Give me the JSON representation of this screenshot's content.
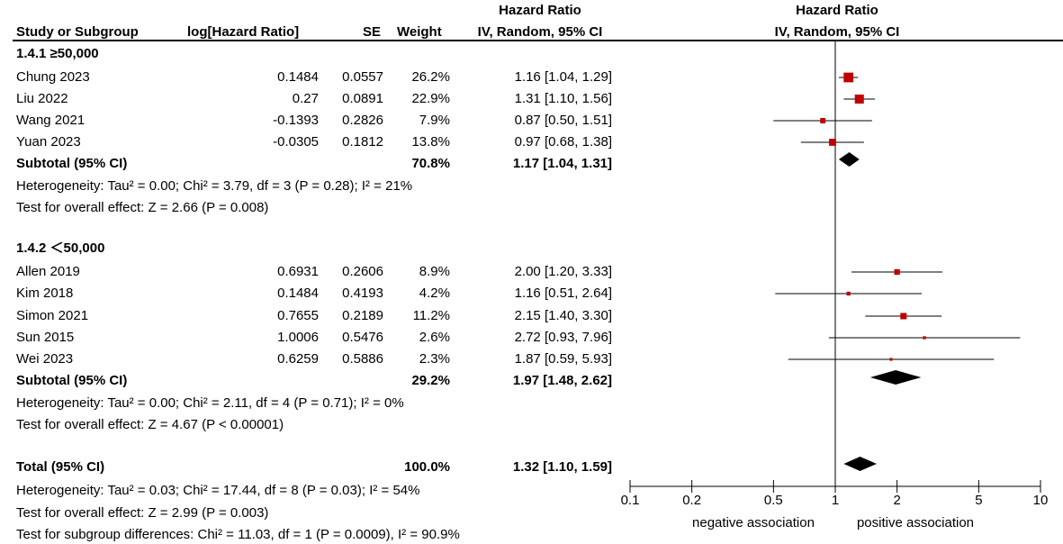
{
  "header": {
    "study_col": "Study or Subgroup",
    "loghr_col": "log[Hazard Ratio]",
    "se_col": "SE",
    "weight_col": "Weight",
    "hr_title": "Hazard Ratio",
    "hr_method": "IV, Random, 95% CI",
    "plot_title": "Hazard Ratio",
    "plot_method": "IV, Random, 95% CI"
  },
  "subgroups": [
    {
      "title": "1.4.1 ≥50,000",
      "studies": [
        {
          "name": "Chung 2023",
          "loghr": "0.1484",
          "se": "0.0557",
          "weight": "26.2%",
          "ci": "1.16 [1.04, 1.29]"
        },
        {
          "name": "Liu 2022",
          "loghr": "0.27",
          "se": "0.0891",
          "weight": "22.9%",
          "ci": "1.31 [1.10, 1.56]"
        },
        {
          "name": "Wang 2021",
          "loghr": "-0.1393",
          "se": "0.2826",
          "weight": "7.9%",
          "ci": "0.87 [0.50, 1.51]"
        },
        {
          "name": "Yuan 2023",
          "loghr": "-0.0305",
          "se": "0.1812",
          "weight": "13.8%",
          "ci": "0.97 [0.68, 1.38]"
        }
      ],
      "subtotal_label": "Subtotal (95% CI)",
      "subtotal_weight": "70.8%",
      "subtotal_ci": "1.17 [1.04, 1.31]",
      "heterogeneity": "Heterogeneity: Tau² = 0.00; Chi² = 3.79, df = 3 (P = 0.28); I² = 21%",
      "overall_effect": "Test for overall effect: Z = 2.66 (P = 0.008)"
    },
    {
      "title": "1.4.2 ＜50,000",
      "studies": [
        {
          "name": "Allen 2019",
          "loghr": "0.6931",
          "se": "0.2606",
          "weight": "8.9%",
          "ci": "2.00 [1.20, 3.33]"
        },
        {
          "name": "Kim 2018",
          "loghr": "0.1484",
          "se": "0.4193",
          "weight": "4.2%",
          "ci": "1.16 [0.51, 2.64]"
        },
        {
          "name": "Simon 2021",
          "loghr": "0.7655",
          "se": "0.2189",
          "weight": "11.2%",
          "ci": "2.15 [1.40, 3.30]"
        },
        {
          "name": "Sun 2015",
          "loghr": "1.0006",
          "se": "0.5476",
          "weight": "2.6%",
          "ci": "2.72 [0.93, 7.96]"
        },
        {
          "name": "Wei 2023",
          "loghr": "0.6259",
          "se": "0.5886",
          "weight": "2.3%",
          "ci": "1.87 [0.59, 5.93]"
        }
      ],
      "subtotal_label": "Subtotal (95% CI)",
      "subtotal_weight": "29.2%",
      "subtotal_ci": "1.97 [1.48, 2.62]",
      "heterogeneity": "Heterogeneity: Tau² = 0.00; Chi² = 2.11, df = 4 (P = 0.71); I² = 0%",
      "overall_effect": "Test for overall effect: Z = 4.67 (P < 0.00001)"
    }
  ],
  "total": {
    "label": "Total (95% CI)",
    "weight": "100.0%",
    "ci": "1.32 [1.10, 1.59]",
    "heterogeneity": "Heterogeneity: Tau² = 0.03; Chi² = 17.44, df = 8 (P = 0.03); I² = 54%",
    "overall_effect": "Test for overall effect: Z = 2.99 (P = 0.003)",
    "subgroup_diff": "Test for subgroup differences: Chi² = 11.03, df = 1 (P = 0.0009), I² = 90.9%"
  },
  "colors": {
    "marker": "#c00000",
    "diamond": "#000000",
    "line": "#000000"
  },
  "chart_data": {
    "type": "forest",
    "title": "Hazard Ratio",
    "subtitle": "IV, Random, 95% CI",
    "x_scale": "log",
    "xlim": [
      0.1,
      10
    ],
    "ticks": [
      0.1,
      0.2,
      0.5,
      1,
      2,
      5,
      10
    ],
    "tick_labels": [
      "0.1",
      "0.2",
      "0.5",
      "1",
      "2",
      "5",
      "10"
    ],
    "null_line": 1,
    "xlabel_left": "negative association",
    "xlabel_right": "positive association",
    "studies": [
      {
        "name": "Chung 2023",
        "hr": 1.16,
        "lo": 1.04,
        "hi": 1.29,
        "weight": 26.2
      },
      {
        "name": "Liu 2022",
        "hr": 1.31,
        "lo": 1.1,
        "hi": 1.56,
        "weight": 22.9
      },
      {
        "name": "Wang 2021",
        "hr": 0.87,
        "lo": 0.5,
        "hi": 1.51,
        "weight": 7.9
      },
      {
        "name": "Yuan 2023",
        "hr": 0.97,
        "lo": 0.68,
        "hi": 1.38,
        "weight": 13.8
      },
      {
        "name": "Allen 2019",
        "hr": 2.0,
        "lo": 1.2,
        "hi": 3.33,
        "weight": 8.9
      },
      {
        "name": "Kim 2018",
        "hr": 1.16,
        "lo": 0.51,
        "hi": 2.64,
        "weight": 4.2
      },
      {
        "name": "Simon 2021",
        "hr": 2.15,
        "lo": 1.4,
        "hi": 3.3,
        "weight": 11.2
      },
      {
        "name": "Sun 2015",
        "hr": 2.72,
        "lo": 0.93,
        "hi": 7.96,
        "weight": 2.6
      },
      {
        "name": "Wei 2023",
        "hr": 1.87,
        "lo": 0.59,
        "hi": 5.93,
        "weight": 2.3
      }
    ],
    "diamonds": [
      {
        "name": "Subtotal 1.4.1",
        "hr": 1.17,
        "lo": 1.04,
        "hi": 1.31
      },
      {
        "name": "Subtotal 1.4.2",
        "hr": 1.97,
        "lo": 1.48,
        "hi": 2.62
      },
      {
        "name": "Total",
        "hr": 1.32,
        "lo": 1.1,
        "hi": 1.59
      }
    ]
  }
}
